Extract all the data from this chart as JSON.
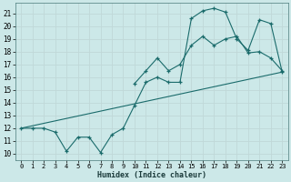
{
  "xlabel": "Humidex (Indice chaleur)",
  "bg_color": "#cce8e8",
  "grid_color": "#c0d8d8",
  "line_color": "#1a6b6b",
  "xlim": [
    -0.5,
    23.5
  ],
  "ylim": [
    9.5,
    21.8
  ],
  "xticks": [
    0,
    1,
    2,
    3,
    4,
    5,
    6,
    7,
    8,
    9,
    10,
    11,
    12,
    13,
    14,
    15,
    16,
    17,
    18,
    19,
    20,
    21,
    22,
    23
  ],
  "yticks": [
    10,
    11,
    12,
    13,
    14,
    15,
    16,
    17,
    18,
    19,
    20,
    21
  ],
  "line1_x": [
    0,
    1,
    2,
    3,
    4,
    5,
    6,
    7,
    8,
    9,
    10,
    11,
    12,
    13,
    14,
    15,
    16,
    17,
    18,
    19,
    20,
    21,
    22,
    23
  ],
  "line1_y": [
    12,
    12,
    12,
    11.7,
    10.2,
    11.3,
    11.3,
    10.1,
    11.5,
    12,
    13.8,
    15.6,
    16.0,
    15.6,
    15.6,
    20.6,
    21.2,
    21.4,
    21.1,
    19.0,
    18.1,
    20.5,
    20.2,
    16.4
  ],
  "line2_x": [
    0,
    23
  ],
  "line2_y": [
    12,
    16.4
  ],
  "line3_x": [
    10,
    11,
    12,
    13,
    14,
    15,
    16,
    17,
    18,
    19,
    20,
    21,
    22,
    23
  ],
  "line3_y": [
    15.5,
    16.5,
    17.5,
    16.5,
    17.0,
    18.5,
    19.2,
    18.5,
    19.0,
    19.2,
    17.9,
    18.0,
    17.5,
    16.5
  ]
}
